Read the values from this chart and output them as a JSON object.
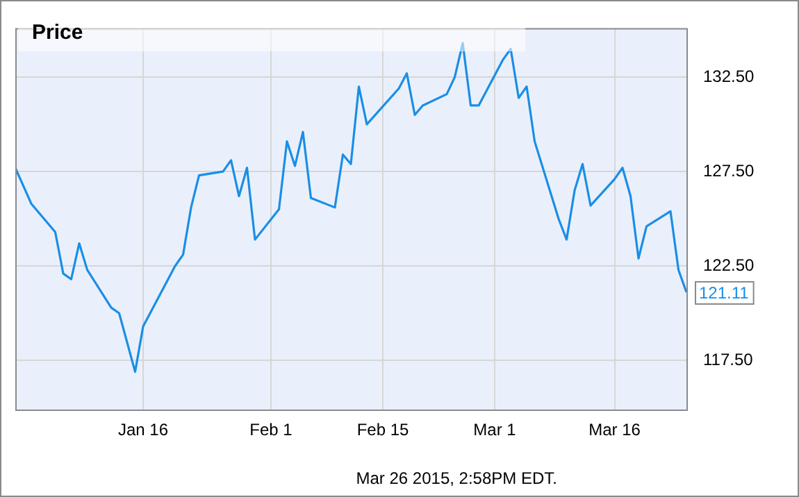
{
  "chart_data": {
    "type": "line",
    "title": "Price",
    "x": [
      "2014-12-31",
      "2015-01-02",
      "2015-01-05",
      "2015-01-06",
      "2015-01-07",
      "2015-01-08",
      "2015-01-09",
      "2015-01-12",
      "2015-01-13",
      "2015-01-15",
      "2015-01-16",
      "2015-01-20",
      "2015-01-21",
      "2015-01-22",
      "2015-01-23",
      "2015-01-26",
      "2015-01-27",
      "2015-01-28",
      "2015-01-29",
      "2015-01-30",
      "2015-02-02",
      "2015-02-03",
      "2015-02-04",
      "2015-02-05",
      "2015-02-06",
      "2015-02-09",
      "2015-02-10",
      "2015-02-11",
      "2015-02-12",
      "2015-02-13",
      "2015-02-17",
      "2015-02-18",
      "2015-02-19",
      "2015-02-20",
      "2015-02-23",
      "2015-02-24",
      "2015-02-25",
      "2015-02-26",
      "2015-02-27",
      "2015-03-02",
      "2015-03-03",
      "2015-03-04",
      "2015-03-05",
      "2015-03-06",
      "2015-03-09",
      "2015-03-10",
      "2015-03-11",
      "2015-03-12",
      "2015-03-13",
      "2015-03-16",
      "2015-03-17",
      "2015-03-18",
      "2015-03-19",
      "2015-03-20",
      "2015-03-23",
      "2015-03-24",
      "2015-03-25"
    ],
    "series": [
      {
        "color": "#1a8ee6",
        "values": [
          127.7,
          125.8,
          124.3,
          122.1,
          121.8,
          123.7,
          122.3,
          120.3,
          120.0,
          116.9,
          119.3,
          122.5,
          123.1,
          125.6,
          127.3,
          127.5,
          128.1,
          126.2,
          127.7,
          123.9,
          125.5,
          129.1,
          127.8,
          129.6,
          126.1,
          125.6,
          128.4,
          127.9,
          132.0,
          130.0,
          131.9,
          132.7,
          130.5,
          131.0,
          131.6,
          132.5,
          134.3,
          131.0,
          131.0,
          133.4,
          134.0,
          131.4,
          132.0,
          129.1,
          125.0,
          123.9,
          126.5,
          127.9,
          125.7,
          127.1,
          127.7,
          126.2,
          122.9,
          124.6,
          125.4,
          122.3,
          121.11
        ],
        "value_labels": [
          null,
          null,
          null,
          null,
          null,
          null,
          null,
          null,
          null,
          null,
          null,
          null,
          null,
          null,
          null,
          null,
          null,
          null,
          null,
          null,
          null,
          null,
          null,
          null,
          null,
          null,
          null,
          null,
          null,
          null,
          null,
          null,
          null,
          null,
          null,
          null,
          null,
          null,
          null,
          null,
          null,
          null,
          null,
          null,
          null,
          null,
          null,
          null,
          null,
          null,
          null,
          null,
          null,
          null,
          null,
          null,
          "121.11"
        ]
      }
    ],
    "xlim": [
      "2014-12-31",
      "2015-03-25"
    ],
    "xticks": [
      {
        "value": "2015-01-16",
        "label": "Jan 16"
      },
      {
        "value": "2015-02-01",
        "label": "Feb 1"
      },
      {
        "value": "2015-02-15",
        "label": "Feb 15"
      },
      {
        "value": "2015-03-01",
        "label": "Mar 1"
      },
      {
        "value": "2015-03-16",
        "label": "Mar 16"
      }
    ],
    "ylim": [
      114.9,
      135.1
    ],
    "yticks": [
      {
        "value": 117.5,
        "label": "117.50"
      },
      {
        "value": 122.5,
        "label": "122.50"
      },
      {
        "value": 127.5,
        "label": "127.50"
      },
      {
        "value": 132.5,
        "label": "132.50"
      }
    ],
    "grid": true,
    "legend": false,
    "marker": "none",
    "line_style": "solid",
    "annotations": [
      "Mar 26 2015, 2:58PM EDT."
    ]
  }
}
